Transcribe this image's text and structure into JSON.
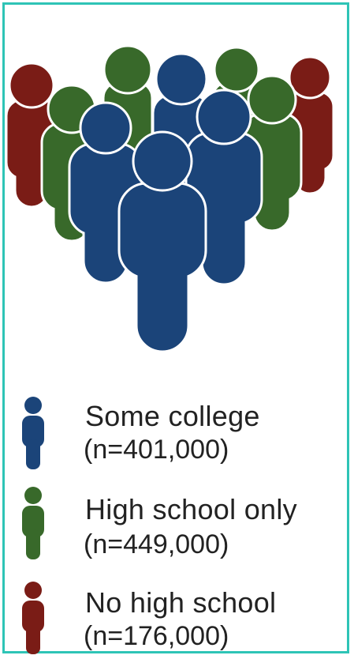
{
  "colors": {
    "frame": "#2ec4b6",
    "background": "#ffffff",
    "stroke": "#ffffff"
  },
  "legend": [
    {
      "name": "some-college",
      "label": "Some college",
      "count": "(n=401,000)",
      "color": "#1b4479",
      "icon": "person-icon"
    },
    {
      "name": "high-school-only",
      "label": "High school only",
      "count": "(n=449,000)",
      "color": "#38692a",
      "icon": "person-icon"
    },
    {
      "name": "no-high-school",
      "label": "No high school",
      "count": "(n=176,000)",
      "color": "#7a1c16",
      "icon": "person-icon"
    }
  ]
}
